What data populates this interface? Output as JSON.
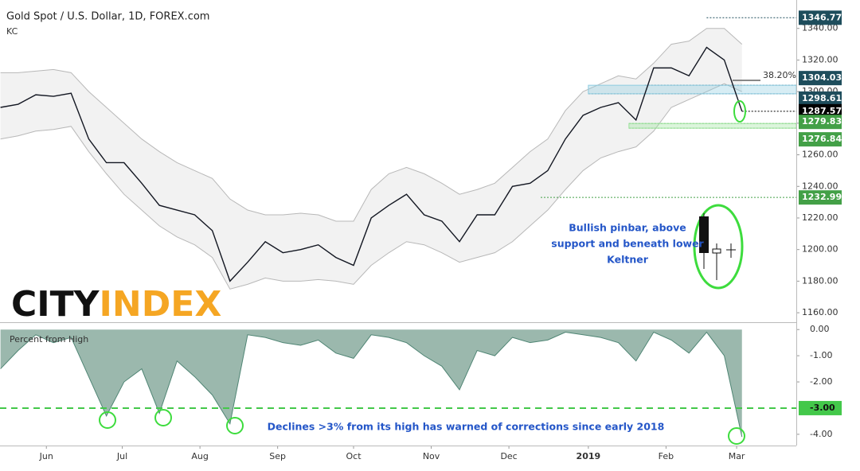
{
  "chart_data": {
    "type": "line",
    "title": "Gold Spot / U.S. Dollar, 1D, FOREX.com",
    "indicator": "KC",
    "logo": {
      "city": "CITY",
      "index": "INDEX"
    },
    "categories": [
      null,
      null,
      null,
      null,
      null,
      null,
      null,
      null,
      null,
      null,
      null,
      null,
      null,
      null,
      null,
      null,
      null,
      null,
      null,
      null,
      null,
      null,
      null,
      null,
      null,
      null,
      null,
      null,
      null,
      null,
      null,
      null,
      null,
      null,
      null,
      null,
      null,
      null,
      null,
      null,
      null,
      null,
      null
    ],
    "xticks": [
      {
        "value": 2.6,
        "label": "Jun"
      },
      {
        "value": 6.9,
        "label": "Jul"
      },
      {
        "value": 11.3,
        "label": "Aug"
      },
      {
        "value": 15.7,
        "label": "Sep"
      },
      {
        "value": 20,
        "label": "Oct"
      },
      {
        "value": 24.4,
        "label": "Nov"
      },
      {
        "value": 28.8,
        "label": "Dec"
      },
      {
        "value": 33.3,
        "label": "2019"
      },
      {
        "value": 37.7,
        "label": "Feb"
      },
      {
        "value": 41.7,
        "label": "Mar"
      }
    ],
    "series": [
      {
        "color": "#131722",
        "values": [
          1290,
          1292,
          1298,
          1297,
          1299,
          1270,
          1255,
          1255,
          1242,
          1228,
          1225,
          1222,
          1212,
          1180,
          1192,
          1205,
          1198,
          1200,
          1203,
          1195,
          1190,
          1220,
          1228,
          1235,
          1222,
          1218,
          1205,
          1222,
          1222,
          1240,
          1242,
          1250,
          1270,
          1285,
          1290,
          1293,
          1282,
          1315,
          1315,
          1310,
          1328,
          1320,
          1287.57
        ]
      }
    ],
    "keltner": {
      "color": "#b8b8b8",
      "fill": "#f2f2f2",
      "upper": [
        1312,
        1312,
        1313,
        1314,
        1312,
        1300,
        1290,
        1280,
        1270,
        1262,
        1255,
        1250,
        1245,
        1232,
        1225,
        1222,
        1222,
        1223,
        1222,
        1218,
        1218,
        1238,
        1248,
        1252,
        1248,
        1242,
        1235,
        1238,
        1242,
        1252,
        1262,
        1270,
        1288,
        1300,
        1305,
        1310,
        1308,
        1318,
        1330,
        1332,
        1340,
        1340,
        1330
      ],
      "lower": [
        1270,
        1272,
        1275,
        1276,
        1278,
        1262,
        1248,
        1235,
        1225,
        1215,
        1208,
        1203,
        1195,
        1175,
        1178,
        1182,
        1180,
        1180,
        1181,
        1180,
        1178,
        1190,
        1198,
        1205,
        1203,
        1198,
        1192,
        1195,
        1198,
        1205,
        1215,
        1225,
        1238,
        1250,
        1258,
        1262,
        1265,
        1275,
        1290,
        1295,
        1300,
        1305,
        1300
      ]
    },
    "ylim": [
      1154,
      1358
    ],
    "yticks": [
      {
        "value": 1160,
        "label": "1160.00"
      },
      {
        "value": 1180,
        "label": "1180.00"
      },
      {
        "value": 1200,
        "label": "1200.00"
      },
      {
        "value": 1220,
        "label": "1220.00"
      },
      {
        "value": 1240,
        "label": "1240.00"
      },
      {
        "value": 1260,
        "label": "1260.00"
      },
      {
        "value": 1280,
        "label": "1280.00"
      },
      {
        "value": 1300,
        "label": "1300.00"
      },
      {
        "value": 1320,
        "label": "1320.00"
      },
      {
        "value": 1340,
        "label": "1340.00"
      }
    ],
    "levels": [
      {
        "value": 1346.77,
        "color": "#1e4d5c",
        "from": 40
      },
      {
        "value": 1304.03,
        "color": "#1e4d5c",
        "from": 36.5
      },
      {
        "value": 1298.61,
        "color": "#1e4d5c",
        "from": 33.3
      },
      {
        "value": 1287.57,
        "color": "#000000",
        "from": 42
      },
      {
        "value": 1279.83,
        "color": "#43a047",
        "from": 35.6
      },
      {
        "value": 1276.84,
        "color": "#43a047",
        "from": 35.6
      },
      {
        "value": 1232.99,
        "color": "#43a047",
        "from": 30.6
      }
    ],
    "annotations": {
      "fib": "38.20%",
      "pinbar": [
        "Bullish pinbar, above",
        "support and beneath lower",
        "Keltner"
      ],
      "declines": "Declines >3% from its high has warned of corrections since early 2018"
    },
    "panel": {
      "type": "area",
      "label": "Percent from High",
      "color": "#4f8574",
      "fill": "#9bb8ad",
      "values": [
        -1.5,
        -0.8,
        -0.2,
        -0.5,
        -0.3,
        -1.8,
        -3.3,
        -2.0,
        -1.5,
        -3.2,
        -1.2,
        -1.8,
        -2.5,
        -3.6,
        -0.2,
        -0.3,
        -0.5,
        -0.6,
        -0.4,
        -0.9,
        -1.1,
        -0.2,
        -0.3,
        -0.5,
        -1.0,
        -1.4,
        -2.3,
        -0.8,
        -1.0,
        -0.3,
        -0.5,
        -0.4,
        -0.1,
        -0.2,
        -0.3,
        -0.5,
        -1.2,
        -0.1,
        -0.4,
        -0.9,
        -0.1,
        -1.0,
        -4.1
      ],
      "ylim": [
        -4.43,
        0.28
      ],
      "yticks": [
        {
          "value": 0,
          "label": "0.00"
        },
        {
          "value": -1,
          "label": "-1.00"
        },
        {
          "value": -2,
          "label": "-2.00"
        },
        {
          "value": -3,
          "label": "-3.00"
        },
        {
          "value": -4,
          "label": "-4.00"
        }
      ],
      "threshold": -3,
      "threshold_color": "#43c84a"
    }
  }
}
